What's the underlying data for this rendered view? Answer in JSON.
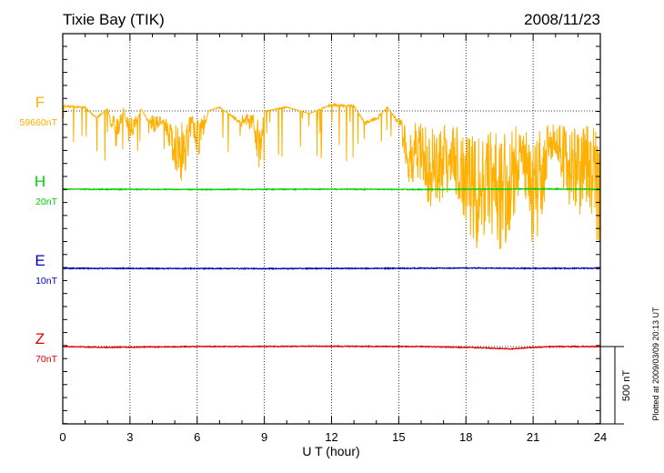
{
  "chart_data": {
    "type": "line",
    "title": "Tixie Bay (TIK)",
    "date": "2008/11/23",
    "xlabel": "U T (hour)",
    "xlim": [
      0,
      24
    ],
    "x_ticks": [
      "0",
      "3",
      "6",
      "9",
      "12",
      "15",
      "18",
      "21",
      "24"
    ],
    "scale_bar": "500 nT",
    "footer": "Plotted at 2009/03/09 20:13 UT",
    "grid": "vertical dotted lines every 3 hours; dotted baseline per component",
    "series": [
      {
        "name": "F",
        "baseline_label": "59660nT",
        "color": "#ffb000",
        "noise": "large",
        "points": [
          [
            0.0,
            40
          ],
          [
            1.0,
            30
          ],
          [
            1.5,
            -60
          ],
          [
            2.0,
            20
          ],
          [
            2.4,
            -300
          ],
          [
            2.7,
            30
          ],
          [
            3.0,
            -250
          ],
          [
            3.5,
            20
          ],
          [
            4.0,
            -150
          ],
          [
            4.5,
            -80
          ],
          [
            5.0,
            -400
          ],
          [
            5.4,
            -490
          ],
          [
            5.8,
            -120
          ],
          [
            6.0,
            -380
          ],
          [
            6.5,
            0
          ],
          [
            7.0,
            30
          ],
          [
            8.0,
            -100
          ],
          [
            8.5,
            -150
          ],
          [
            8.8,
            -400
          ],
          [
            9.0,
            0
          ],
          [
            10.0,
            30
          ],
          [
            11.0,
            -20
          ],
          [
            12.0,
            50
          ],
          [
            13.0,
            40
          ],
          [
            13.5,
            -100
          ],
          [
            14.0,
            -60
          ],
          [
            14.5,
            30
          ],
          [
            15.0,
            -100
          ],
          [
            15.5,
            -500
          ],
          [
            16.0,
            -450
          ],
          [
            16.5,
            -700
          ],
          [
            17.0,
            -550
          ],
          [
            17.5,
            -500
          ],
          [
            18.0,
            -800
          ],
          [
            18.5,
            -900
          ],
          [
            19.0,
            -780
          ],
          [
            19.5,
            -950
          ],
          [
            20.0,
            -850
          ],
          [
            20.5,
            -400
          ],
          [
            21.0,
            -950
          ],
          [
            21.5,
            -600
          ],
          [
            22.0,
            -300
          ],
          [
            22.5,
            -600
          ],
          [
            23.0,
            -700
          ],
          [
            23.5,
            -600
          ],
          [
            24.0,
            -950
          ]
        ]
      },
      {
        "name": "H",
        "baseline_label": "20nT",
        "color": "#00d000",
        "noise": "small",
        "points": [
          [
            0,
            0
          ],
          [
            6,
            -2
          ],
          [
            12,
            0
          ],
          [
            16,
            -2
          ],
          [
            18,
            0
          ],
          [
            21,
            2
          ],
          [
            24,
            0
          ]
        ]
      },
      {
        "name": "E",
        "baseline_label": "10nT",
        "color": "#0000b0",
        "noise": "small",
        "points": [
          [
            0,
            0
          ],
          [
            9,
            -2
          ],
          [
            15,
            0
          ],
          [
            18,
            2
          ],
          [
            21,
            0
          ],
          [
            24,
            0
          ]
        ]
      },
      {
        "name": "Z",
        "baseline_label": "70nT",
        "color": "#e00000",
        "noise": "small",
        "points": [
          [
            0,
            0
          ],
          [
            2,
            -5
          ],
          [
            6,
            0
          ],
          [
            12,
            2
          ],
          [
            16,
            0
          ],
          [
            18,
            -5
          ],
          [
            19,
            -10
          ],
          [
            20,
            -15
          ],
          [
            21,
            -5
          ],
          [
            22,
            0
          ],
          [
            24,
            0
          ]
        ]
      }
    ]
  }
}
